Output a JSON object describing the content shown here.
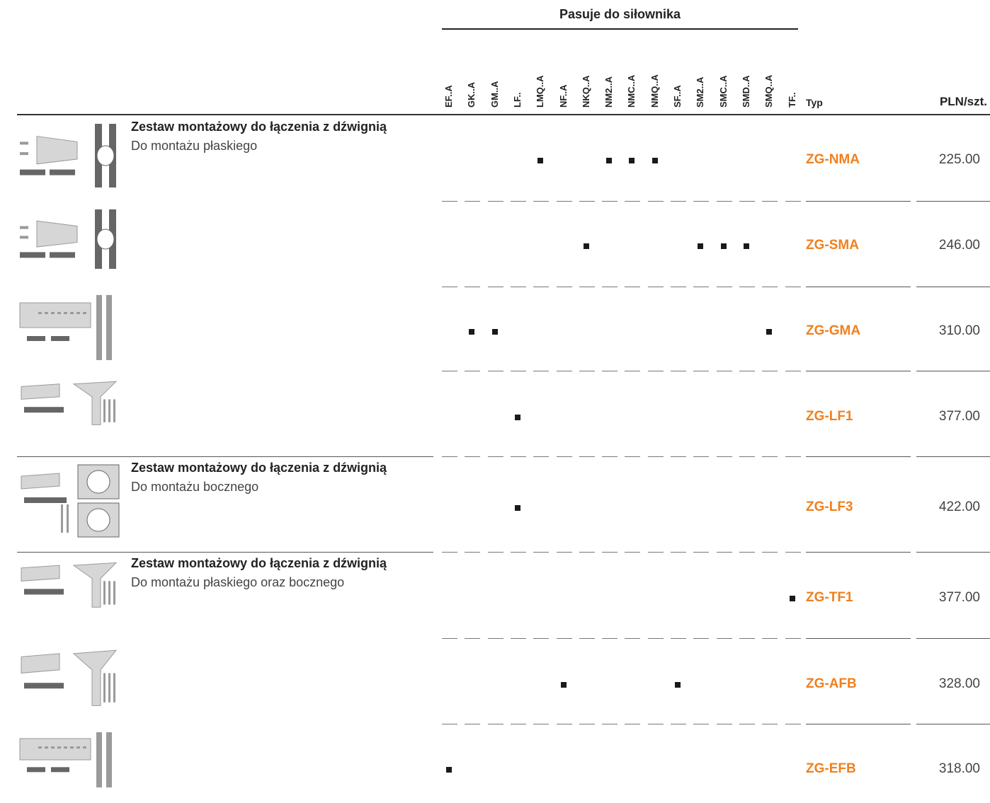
{
  "header": {
    "group_title": "Pasuje do siłownika",
    "columns": [
      "EF..A",
      "GK..A",
      "GM..A",
      "LF..",
      "LMQ..A",
      "NF..A",
      "NKQ..A",
      "NM2..A",
      "NMC..A",
      "NMQ..A",
      "SF..A",
      "SM2..A",
      "SMC..A",
      "SMD..A",
      "SMQ..A",
      "TF.."
    ],
    "type_label": "Typ",
    "price_label": "PLN/szt."
  },
  "rows": [
    {
      "title": "Zestaw montażowy do łączenia z dźwignią",
      "subtitle": "Do montażu płaskiego",
      "marks": [
        4,
        7,
        8,
        9
      ],
      "code": "ZG-NMA",
      "price": "225.00"
    },
    {
      "title": "",
      "subtitle": "",
      "marks": [
        6,
        11,
        12,
        13
      ],
      "code": "ZG-SMA",
      "price": "246.00"
    },
    {
      "title": "",
      "subtitle": "",
      "marks": [
        1,
        2,
        14
      ],
      "code": "ZG-GMA",
      "price": "310.00"
    },
    {
      "title": "",
      "subtitle": "",
      "marks": [
        3
      ],
      "code": "ZG-LF1",
      "price": "377.00"
    },
    {
      "title": "Zestaw montażowy do łączenia z dźwignią",
      "subtitle": "Do montażu bocznego",
      "marks": [
        3
      ],
      "code": "ZG-LF3",
      "price": "422.00"
    },
    {
      "title": "Zestaw montażowy do łączenia z dźwignią",
      "subtitle": "Do montażu płaskiego oraz bocznego",
      "marks": [
        15
      ],
      "code": "ZG-TF1",
      "price": "377.00"
    },
    {
      "title": "",
      "subtitle": "",
      "marks": [
        5,
        10
      ],
      "code": "ZG-AFB",
      "price": "328.00"
    },
    {
      "title": "",
      "subtitle": "",
      "marks": [
        0
      ],
      "code": "ZG-EFB",
      "price": "318.00"
    }
  ],
  "colors": {
    "code": "#f0801e",
    "mark": "#1a1a1a"
  }
}
